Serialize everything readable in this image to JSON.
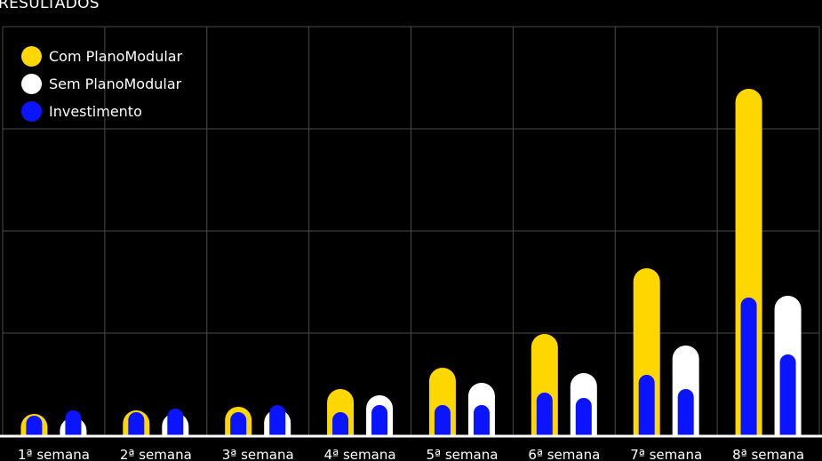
{
  "chart_data": {
    "type": "bar",
    "title": "RESULTADOS",
    "xlabel": "",
    "ylabel": "",
    "categories": [
      "1ª semana",
      "2ª semana",
      "3ª semana",
      "4ª semana",
      "5ª semana",
      "6ª semana",
      "7ª semana",
      "8ª semana"
    ],
    "series": [
      {
        "name": "Com PlanoModular",
        "values": [
          24,
          28,
          32,
          52,
          76,
          114,
          188,
          390
        ],
        "color": "#FFD700"
      },
      {
        "name": "Sem PlanoModular",
        "values": [
          20,
          25,
          29,
          45,
          59,
          70,
          101,
          157
        ],
        "color": "#FFFFFF"
      },
      {
        "name": "Investimento",
        "values": [
          [
            22,
            28
          ],
          [
            26,
            30
          ],
          [
            26,
            34
          ],
          [
            26,
            34
          ],
          [
            34,
            34
          ],
          [
            48,
            42
          ],
          [
            68,
            52
          ],
          [
            155,
            91
          ]
        ],
        "color": "#0A14FF"
      }
    ],
    "ylim": [
      0,
      460
    ],
    "grid": true,
    "legend": "top-left"
  }
}
